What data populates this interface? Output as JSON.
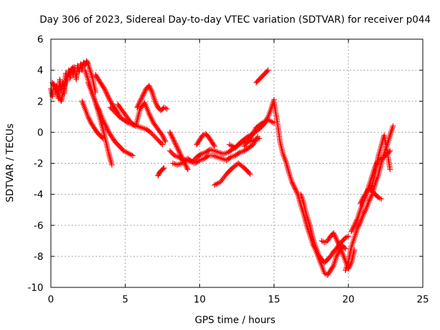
{
  "chart_data": {
    "type": "scatter",
    "title": "Day 306 of 2023, Sidereal Day-to-day VTEC variation (SDTVAR) for receiver p044",
    "xlabel": "GPS time / hours",
    "ylabel": "SDTVAR / TECUs",
    "xlim": [
      0,
      25
    ],
    "ylim": [
      -10,
      6
    ],
    "xticks": [
      0,
      5,
      10,
      15,
      20,
      25
    ],
    "yticks": [
      -10,
      -8,
      -6,
      -4,
      -2,
      0,
      2,
      4,
      6
    ],
    "grid": true,
    "legend": "none",
    "marker": "plus",
    "color": "#ff0000",
    "series": [
      {
        "x": [
          0.0,
          0.1,
          0.2,
          0.3,
          0.4,
          0.5,
          0.6,
          0.7,
          0.8,
          0.9,
          1.0,
          1.1,
          1.2,
          1.3,
          1.4,
          1.5,
          1.6,
          1.7,
          1.8,
          1.9,
          2.0,
          2.1,
          2.2,
          2.3,
          2.4,
          2.5,
          2.6,
          2.7,
          2.8,
          2.9,
          3.0
        ],
        "y": [
          2.8,
          2.3,
          3.1,
          2.6,
          3.0,
          2.2,
          3.4,
          2.7,
          3.2,
          2.5,
          3.8,
          3.3,
          4.0,
          3.5,
          4.1,
          3.7,
          4.2,
          3.4,
          4.3,
          3.9,
          4.4,
          4.0,
          4.5,
          4.3,
          4.6,
          4.4,
          4.1,
          3.8,
          3.5,
          3.0,
          2.6
        ]
      },
      {
        "x": [
          0.1,
          0.3,
          0.5,
          0.7,
          0.9,
          1.1,
          1.3,
          1.5
        ],
        "y": [
          3.2,
          2.9,
          2.4,
          2.0,
          2.9,
          3.6,
          3.9,
          4.2
        ]
      },
      {
        "x": [
          2.3,
          2.5,
          2.7,
          2.9,
          3.1,
          3.3,
          3.5,
          3.7,
          3.9,
          4.1
        ],
        "y": [
          4.0,
          3.4,
          2.8,
          2.2,
          1.6,
          0.9,
          0.2,
          -0.6,
          -1.4,
          -2.1
        ]
      },
      {
        "x": [
          2.5,
          2.7,
          2.9,
          3.1,
          3.3,
          3.5,
          3.7,
          3.9,
          4.1,
          4.3,
          4.5,
          4.7,
          4.9,
          5.1,
          5.3,
          5.5
        ],
        "y": [
          3.2,
          2.7,
          2.2,
          1.7,
          1.3,
          0.8,
          0.4,
          0.0,
          -0.3,
          -0.6,
          -0.8,
          -1.0,
          -1.2,
          -1.3,
          -1.4,
          -1.5
        ]
      },
      {
        "x": [
          2.1,
          2.3,
          2.5,
          2.7,
          2.9,
          3.1,
          3.3,
          3.5
        ],
        "y": [
          2.0,
          1.5,
          1.0,
          0.6,
          0.3,
          0.0,
          -0.2,
          -0.4
        ]
      },
      {
        "x": [
          3.0,
          3.2,
          3.4,
          3.6,
          3.8,
          4.0,
          4.2,
          4.4,
          4.6
        ],
        "y": [
          3.7,
          3.4,
          3.1,
          2.8,
          2.4,
          2.0,
          1.7,
          1.4,
          1.1
        ]
      },
      {
        "x": [
          4.0,
          4.3,
          4.6,
          4.9,
          5.2,
          5.5,
          5.8,
          6.1,
          6.4,
          6.7,
          7.0,
          7.3,
          7.5
        ],
        "y": [
          1.6,
          1.3,
          1.0,
          0.8,
          0.6,
          0.5,
          0.4,
          0.3,
          0.2,
          0.0,
          -0.3,
          -0.6,
          -0.8
        ]
      },
      {
        "x": [
          4.5,
          4.8,
          5.1,
          5.4,
          5.7,
          6.0,
          6.3,
          6.6,
          6.9,
          7.2,
          7.5,
          7.7
        ],
        "y": [
          1.8,
          1.4,
          1.0,
          0.6,
          0.4,
          1.5,
          1.9,
          1.2,
          0.6,
          0.2,
          -0.2,
          -0.6
        ]
      },
      {
        "x": [
          5.8,
          6.0,
          6.2,
          6.4,
          6.6,
          6.8,
          7.0,
          7.2,
          7.4,
          7.6,
          7.8
        ],
        "y": [
          1.6,
          2.0,
          2.4,
          2.8,
          3.0,
          2.6,
          2.0,
          1.6,
          1.4,
          1.6,
          1.5
        ]
      },
      {
        "x": [
          7.2,
          7.3,
          7.4,
          7.5,
          7.6
        ],
        "y": [
          -2.8,
          -2.6,
          -2.5,
          -2.4,
          -2.3
        ]
      },
      {
        "x": [
          8.0,
          8.3,
          8.6,
          8.9,
          9.2,
          9.5,
          9.8,
          10.1,
          10.4,
          10.7,
          11.0,
          11.3,
          11.6,
          11.9,
          12.2,
          12.5,
          12.8,
          13.1,
          13.4,
          13.7,
          14.0
        ],
        "y": [
          -1.2,
          -1.5,
          -1.6,
          -1.8,
          -1.7,
          -1.9,
          -1.6,
          -1.4,
          -1.3,
          -1.1,
          -1.2,
          -1.3,
          -1.4,
          -1.3,
          -1.1,
          -0.9,
          -0.7,
          -0.6,
          -0.6,
          -0.5,
          -0.4
        ]
      },
      {
        "x": [
          8.2,
          8.5,
          8.8,
          9.1,
          9.4,
          9.7,
          10.0,
          10.3,
          10.6,
          10.9,
          11.2,
          11.5,
          11.8,
          12.1,
          12.4,
          12.7,
          13.0,
          13.3,
          13.6,
          13.9
        ],
        "y": [
          -2.0,
          -2.1,
          -2.0,
          -1.8,
          -1.9,
          -2.0,
          -1.8,
          -1.7,
          -1.5,
          -1.5,
          -1.6,
          -1.7,
          -1.8,
          -1.6,
          -1.5,
          -1.3,
          -1.2,
          -1.0,
          -0.8,
          -0.3
        ]
      },
      {
        "x": [
          8.0,
          8.2,
          8.4,
          8.6,
          8.8,
          9.0,
          9.2
        ],
        "y": [
          0.0,
          -0.4,
          -0.8,
          -1.2,
          -1.6,
          -2.0,
          -2.4
        ]
      },
      {
        "x": [
          9.8,
          10.0,
          10.2,
          10.4,
          10.6,
          10.8,
          11.0
        ],
        "y": [
          -0.8,
          -0.5,
          -0.2,
          -0.1,
          -0.3,
          -0.6,
          -0.9
        ]
      },
      {
        "x": [
          11.0,
          11.4,
          11.8,
          12.2,
          12.6,
          13.0,
          13.4
        ],
        "y": [
          -3.4,
          -3.2,
          -2.7,
          -2.3,
          -2.0,
          -2.3,
          -2.7
        ]
      },
      {
        "x": [
          12.0,
          12.4,
          12.8,
          13.2,
          13.6,
          14.0,
          14.4,
          14.6,
          14.8,
          15.0
        ],
        "y": [
          -0.8,
          -1.0,
          -0.6,
          -0.3,
          -0.1,
          0.2,
          0.6,
          1.0,
          1.5,
          2.1
        ]
      },
      {
        "x": [
          13.0,
          13.4,
          13.8,
          14.2,
          14.6,
          15.0
        ],
        "y": [
          -0.9,
          -0.4,
          0.3,
          0.6,
          0.8,
          0.6
        ]
      },
      {
        "x": [
          13.8,
          14.0,
          14.2,
          14.4,
          14.6
        ],
        "y": [
          3.2,
          3.4,
          3.6,
          3.8,
          4.0
        ]
      },
      {
        "x": [
          15.0,
          15.2,
          15.4,
          15.6,
          15.8,
          16.0,
          16.2,
          16.4,
          16.6,
          16.8,
          17.0,
          17.2,
          17.4,
          17.6,
          17.8,
          18.0,
          18.2,
          18.4,
          18.6,
          18.8,
          19.0,
          19.2,
          19.4,
          19.6,
          19.8
        ],
        "y": [
          1.9,
          0.8,
          -0.6,
          -1.4,
          -1.9,
          -2.6,
          -3.2,
          -3.6,
          -4.0,
          -4.7,
          -5.3,
          -6.0,
          -6.6,
          -7.2,
          -7.6,
          -8.1,
          -8.6,
          -9.1,
          -9.2,
          -8.9,
          -8.6,
          -8.0,
          -7.6,
          -7.3,
          -7.5
        ]
      },
      {
        "x": [
          16.8,
          17.0,
          17.2,
          17.4,
          17.6,
          17.8,
          18.0,
          18.2,
          18.4,
          18.6,
          18.8,
          19.0,
          19.2,
          19.4,
          19.6,
          19.8,
          20.0
        ],
        "y": [
          -4.0,
          -4.6,
          -5.4,
          -6.0,
          -6.8,
          -7.4,
          -7.9,
          -8.2,
          -8.4,
          -8.2,
          -8.0,
          -7.7,
          -7.5,
          -7.2,
          -7.0,
          -6.8,
          -6.7
        ]
      },
      {
        "x": [
          18.2,
          18.4,
          18.6,
          18.8,
          19.0,
          19.2,
          19.4,
          19.6,
          19.8,
          20.0,
          20.2,
          20.4
        ],
        "y": [
          -7.0,
          -7.1,
          -7.0,
          -6.7,
          -6.5,
          -6.9,
          -7.3,
          -7.8,
          -8.3,
          -8.8,
          -8.4,
          -7.6
        ]
      },
      {
        "x": [
          19.8,
          20.0,
          20.2,
          20.4,
          20.6,
          20.8,
          21.0,
          21.2,
          21.4,
          21.6,
          21.8,
          22.0,
          22.2,
          22.4,
          22.6,
          22.8,
          23.0
        ],
        "y": [
          -8.9,
          -8.3,
          -7.4,
          -6.8,
          -6.2,
          -5.8,
          -5.3,
          -4.9,
          -4.4,
          -4.0,
          -3.3,
          -2.8,
          -2.0,
          -1.4,
          -0.8,
          -0.2,
          0.4
        ]
      },
      {
        "x": [
          20.2,
          20.4,
          20.6,
          20.8,
          21.0,
          21.2,
          21.4,
          21.6,
          21.8,
          22.0,
          22.2,
          22.4,
          22.6,
          22.8
        ],
        "y": [
          -6.4,
          -6.0,
          -5.6,
          -5.0,
          -4.5,
          -4.0,
          -3.4,
          -2.8,
          -2.2,
          -1.8,
          -1.7,
          -1.6,
          -1.4,
          -1.2
        ]
      },
      {
        "x": [
          20.8,
          21.0,
          21.2,
          21.4,
          21.6,
          21.8,
          22.0,
          22.2,
          22.4,
          22.6,
          22.8
        ],
        "y": [
          -4.6,
          -4.2,
          -3.9,
          -3.6,
          -3.4,
          -2.6,
          -1.6,
          -0.9,
          -0.2,
          -1.2,
          -2.4
        ]
      },
      {
        "x": [
          21.4,
          21.6,
          21.8,
          22.0,
          22.2
        ],
        "y": [
          -3.6,
          -3.8,
          -4.0,
          -4.2,
          -4.3
        ]
      }
    ]
  }
}
